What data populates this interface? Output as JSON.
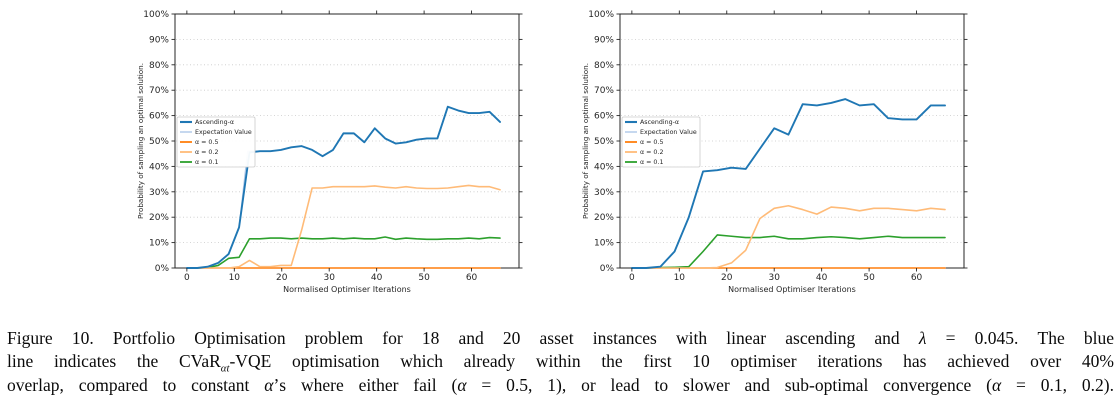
{
  "figure": {
    "caption": {
      "label": "Figure 10.",
      "lines": [
        {
          "segments": [
            {
              "t": "Figure 10.  Portfolio Optimisation problem for 18 and 20 asset instances with linear ascending and "
            },
            {
              "t": "λ",
              "style": "math"
            },
            {
              "t": " = 0.045.  The blue"
            }
          ]
        },
        {
          "segments": [
            {
              "t": "line indicates the CVaR"
            },
            {
              "t": "αt",
              "style": "sub"
            },
            {
              "t": "-VQE optimisation which already within the first 10 optimiser iterations has achieved over 40%"
            }
          ]
        },
        {
          "segments": [
            {
              "t": "overlap, compared to constant "
            },
            {
              "t": "α",
              "style": "math"
            },
            {
              "t": "’s where either fail ("
            },
            {
              "t": "α",
              "style": "math"
            },
            {
              "t": " = 0.5, 1), or lead to slower and sub-optimal convergence ("
            },
            {
              "t": "α",
              "style": "math"
            },
            {
              "t": " = 0.1, 0.2)."
            }
          ]
        }
      ]
    }
  },
  "chart_data": [
    {
      "type": "line",
      "title": "",
      "instance": "18 assets",
      "xlabel": "Normalised Optimiser Iterations",
      "ylabel": "Probability of sampling an optimal solution.",
      "xlim": [
        -2.5,
        70
      ],
      "ylim": [
        0,
        100
      ],
      "xticks": [
        {
          "value": 0,
          "label": "0"
        },
        {
          "value": 10,
          "label": "10"
        },
        {
          "value": 20,
          "label": "20"
        },
        {
          "value": 30,
          "label": "30"
        },
        {
          "value": 40,
          "label": "40"
        },
        {
          "value": 50,
          "label": "50"
        },
        {
          "value": 60,
          "label": "60"
        }
      ],
      "yticks": [
        {
          "value": 0,
          "label": "0%"
        },
        {
          "value": 10,
          "label": "10%"
        },
        {
          "value": 20,
          "label": "20%"
        },
        {
          "value": 30,
          "label": "30%"
        },
        {
          "value": 40,
          "label": "40%"
        },
        {
          "value": 50,
          "label": "50%"
        },
        {
          "value": 60,
          "label": "60%"
        },
        {
          "value": 70,
          "label": "70%"
        },
        {
          "value": 80,
          "label": "80%"
        },
        {
          "value": 90,
          "label": "90%"
        },
        {
          "value": 100,
          "label": "100%"
        }
      ],
      "grid": {
        "horizontal": true,
        "style": "dotted",
        "color": "#c9c9c9"
      },
      "legend": {
        "position": "center-left",
        "entries": [
          "Ascending-α",
          "Expectation Value",
          "α = 0.5",
          "α = 0.2",
          "α = 0.1"
        ]
      },
      "draw_order": [
        "Expectation Value",
        "α = 0.5",
        "α = 0.1",
        "α = 0.2",
        "Ascending-α"
      ],
      "series": [
        {
          "name": "Ascending-α",
          "color": "#1f77b4",
          "lw": 1.9,
          "x": [
            0,
            2.2,
            4.4,
            6.6,
            8.8,
            11,
            13.2,
            15.4,
            17.6,
            19.8,
            22,
            24.2,
            26.4,
            28.6,
            30.8,
            33,
            35.2,
            37.4,
            39.6,
            41.8,
            44,
            46.2,
            48.4,
            50.6,
            52.8,
            55,
            57.2,
            59.4,
            61.6,
            63.8,
            66
          ],
          "values": [
            0,
            0,
            0.5,
            2,
            5.5,
            16,
            45.5,
            46,
            46,
            46.5,
            47.5,
            48,
            46.5,
            44,
            46.5,
            53,
            53,
            49.5,
            55,
            51,
            49,
            49.5,
            50.5,
            51,
            51,
            63.5,
            62,
            61,
            61,
            61.5,
            57.5
          ]
        },
        {
          "name": "Expectation Value",
          "color": "#aec7e8",
          "lw": 1.2,
          "note": "mostly hidden behind Ascending-α; briefly visible at the jump near x=13",
          "x": [
            11,
            12.8,
            15.4
          ],
          "values": [
            16,
            46,
            46
          ]
        },
        {
          "name": "α = 0.5",
          "color": "#ff7f0e",
          "lw": 1.6,
          "note": "stays at 0% for all iterations",
          "x": [
            0,
            2.2,
            4.4,
            6.6,
            8.8,
            11,
            13.2,
            15.4,
            17.6,
            19.8,
            22,
            24.2,
            26.4,
            28.6,
            30.8,
            33,
            35.2,
            37.4,
            39.6,
            41.8,
            44,
            46.2,
            48.4,
            50.6,
            52.8,
            55,
            57.2,
            59.4,
            61.6,
            63.8,
            66
          ],
          "values": [
            0,
            0,
            0,
            0,
            0,
            0,
            0,
            0,
            0,
            0,
            0,
            0,
            0,
            0,
            0,
            0,
            0,
            0,
            0,
            0,
            0,
            0,
            0,
            0,
            0,
            0,
            0,
            0,
            0,
            0,
            0
          ]
        },
        {
          "name": "α = 0.2",
          "color": "#ffbb78",
          "lw": 1.6,
          "x": [
            0,
            2.2,
            4.4,
            6.6,
            8.8,
            11,
            13.2,
            15.4,
            17.6,
            19.8,
            22,
            24.2,
            26.4,
            28.6,
            30.8,
            33,
            35.2,
            37.4,
            39.6,
            41.8,
            44,
            46.2,
            48.4,
            50.6,
            52.8,
            55,
            57.2,
            59.4,
            61.6,
            63.8,
            66
          ],
          "values": [
            0,
            0,
            0,
            0,
            0,
            0.5,
            3,
            0.5,
            0.5,
            1,
            1,
            15,
            31.5,
            31.5,
            32,
            32,
            32,
            32,
            32.3,
            31.8,
            31.5,
            32,
            31.5,
            31.3,
            31.3,
            31.5,
            32,
            32.5,
            32,
            32,
            30.8
          ]
        },
        {
          "name": "α = 0.1",
          "color": "#2ca02c",
          "lw": 1.6,
          "x": [
            0,
            2.2,
            4.4,
            6.6,
            8.8,
            11,
            13.2,
            15.4,
            17.6,
            19.8,
            22,
            24.2,
            26.4,
            28.6,
            30.8,
            33,
            35.2,
            37.4,
            39.6,
            41.8,
            44,
            46.2,
            48.4,
            50.6,
            52.8,
            55,
            57.2,
            59.4,
            61.6,
            63.8,
            66
          ],
          "values": [
            0,
            0,
            0.2,
            1,
            3.8,
            4.2,
            11.5,
            11.5,
            11.8,
            11.8,
            11.5,
            11.8,
            11.5,
            11.5,
            11.8,
            11.5,
            11.8,
            11.5,
            11.5,
            12.2,
            11.3,
            11.8,
            11.5,
            11.3,
            11.3,
            11.5,
            11.5,
            11.8,
            11.5,
            12,
            11.8
          ]
        }
      ]
    },
    {
      "type": "line",
      "title": "",
      "instance": "20 assets",
      "xlabel": "Normalised Optimiser Iterations",
      "ylabel": "Probability of sampling an optimal solution.",
      "xlim": [
        -2.5,
        70
      ],
      "ylim": [
        0,
        100
      ],
      "xticks": [
        {
          "value": 0,
          "label": "0"
        },
        {
          "value": 10,
          "label": "10"
        },
        {
          "value": 20,
          "label": "20"
        },
        {
          "value": 30,
          "label": "30"
        },
        {
          "value": 40,
          "label": "40"
        },
        {
          "value": 50,
          "label": "50"
        },
        {
          "value": 60,
          "label": "60"
        }
      ],
      "yticks": [
        {
          "value": 0,
          "label": "0%"
        },
        {
          "value": 10,
          "label": "10%"
        },
        {
          "value": 20,
          "label": "20%"
        },
        {
          "value": 30,
          "label": "30%"
        },
        {
          "value": 40,
          "label": "40%"
        },
        {
          "value": 50,
          "label": "50%"
        },
        {
          "value": 60,
          "label": "60%"
        },
        {
          "value": 70,
          "label": "70%"
        },
        {
          "value": 80,
          "label": "80%"
        },
        {
          "value": 90,
          "label": "90%"
        },
        {
          "value": 100,
          "label": "100%"
        }
      ],
      "grid": {
        "horizontal": true,
        "style": "dotted",
        "color": "#c9c9c9"
      },
      "legend": {
        "position": "center-left",
        "entries": [
          "Ascending-α",
          "Expectation Value",
          "α = 0.5",
          "α = 0.2",
          "α = 0.1"
        ]
      },
      "draw_order": [
        "Expectation Value",
        "α = 0.5",
        "α = 0.1",
        "α = 0.2",
        "Ascending-α"
      ],
      "series": [
        {
          "name": "Ascending-α",
          "color": "#1f77b4",
          "lw": 1.9,
          "x": [
            0,
            3,
            6,
            9,
            12,
            15,
            18,
            21,
            24,
            27,
            30,
            33,
            36,
            39,
            42,
            45,
            48,
            51,
            54,
            57,
            60,
            63,
            66
          ],
          "values": [
            0,
            0,
            0.5,
            6.5,
            20,
            38,
            38.5,
            39.5,
            39,
            47,
            55,
            52.5,
            64.5,
            64,
            65,
            66.5,
            64,
            64.5,
            59,
            58.5,
            58.5,
            64,
            64
          ]
        },
        {
          "name": "Expectation Value",
          "color": "#aec7e8",
          "lw": 1.2,
          "note": "hidden behind Ascending-α",
          "x": [
            9,
            12,
            15
          ],
          "values": [
            6.5,
            20,
            38
          ]
        },
        {
          "name": "α = 0.5",
          "color": "#ff7f0e",
          "lw": 1.6,
          "note": "stays at 0% for all iterations",
          "x": [
            0,
            3,
            6,
            9,
            12,
            15,
            18,
            21,
            24,
            27,
            30,
            33,
            36,
            39,
            42,
            45,
            48,
            51,
            54,
            57,
            60,
            63,
            66
          ],
          "values": [
            0,
            0,
            0,
            0,
            0,
            0,
            0,
            0,
            0,
            0,
            0,
            0,
            0,
            0,
            0,
            0,
            0,
            0,
            0,
            0,
            0,
            0,
            0
          ]
        },
        {
          "name": "α = 0.2",
          "color": "#ffbb78",
          "lw": 1.6,
          "x": [
            0,
            3,
            6,
            9,
            12,
            15,
            18,
            21,
            24,
            27,
            30,
            33,
            36,
            39,
            42,
            45,
            48,
            51,
            54,
            57,
            60,
            63,
            66
          ],
          "values": [
            0,
            0,
            0,
            0,
            0,
            0,
            0.2,
            2,
            7,
            19.5,
            23.5,
            24.5,
            23,
            21.2,
            24,
            23.5,
            22.5,
            23.5,
            23.5,
            23,
            22.5,
            23.5,
            23
          ]
        },
        {
          "name": "α = 0.1",
          "color": "#2ca02c",
          "lw": 1.6,
          "x": [
            0,
            3,
            6,
            9,
            12,
            15,
            18,
            21,
            24,
            27,
            30,
            33,
            36,
            39,
            42,
            45,
            48,
            51,
            54,
            57,
            60,
            63,
            66
          ],
          "values": [
            0,
            0,
            0.2,
            0.3,
            0.5,
            6.5,
            13,
            12.5,
            12,
            12,
            12.5,
            11.5,
            11.5,
            12,
            12.3,
            12,
            11.5,
            12,
            12.5,
            12,
            12,
            12,
            12
          ]
        }
      ]
    }
  ]
}
